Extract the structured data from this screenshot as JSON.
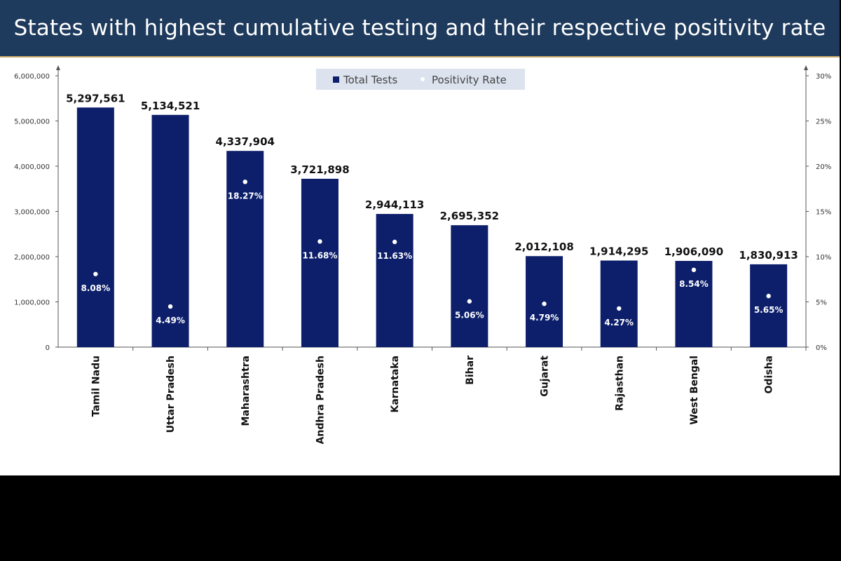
{
  "title": "States with highest cumulative testing and their respective positivity rate",
  "colors": {
    "header_bg": "#1e3a5c",
    "bar": "#0d1f6b",
    "dot": "#ffffff",
    "legend_bg": "#dce3ee"
  },
  "legend": {
    "total_tests": "Total Tests",
    "positivity_rate": "Positivity Rate"
  },
  "chart_data": {
    "type": "bar",
    "title": "States with highest cumulative testing and their respective positivity rate",
    "xlabel": "",
    "ylabel": "",
    "categories": [
      "Tamil Nadu",
      "Uttar Pradesh",
      "Maharashtra",
      "Andhra Pradesh",
      "Karnataka",
      "Bihar",
      "Gujarat",
      "Rajasthan",
      "West Bengal",
      "Odisha"
    ],
    "series": [
      {
        "name": "Total Tests",
        "type": "bar",
        "axis": "left",
        "values": [
          5297561,
          5134521,
          4337904,
          3721898,
          2944113,
          2695352,
          2012108,
          1914295,
          1906090,
          1830913
        ],
        "labels": [
          "5,297,561",
          "5,134,521",
          "4,337,904",
          "3,721,898",
          "2,944,113",
          "2,695,352",
          "2,012,108",
          "1,914,295",
          "1,906,090",
          "1,830,913"
        ]
      },
      {
        "name": "Positivity Rate",
        "type": "scatter",
        "axis": "right",
        "values": [
          8.08,
          4.49,
          18.27,
          11.68,
          11.63,
          5.06,
          4.79,
          4.27,
          8.54,
          5.65
        ],
        "labels": [
          "8.08%",
          "4.49%",
          "18.27%",
          "11.68%",
          "11.63%",
          "5.06%",
          "4.79%",
          "4.27%",
          "8.54%",
          "5.65%"
        ]
      }
    ],
    "y_left": {
      "ylim": [
        0,
        6000000
      ],
      "ticks": [
        0,
        1000000,
        2000000,
        3000000,
        4000000,
        5000000,
        6000000
      ],
      "tick_labels": [
        "0",
        "1,000,000",
        "2,000,000",
        "3,000,000",
        "4,000,000",
        "5,000,000",
        "6,000,000"
      ]
    },
    "y_right": {
      "ylim": [
        0,
        30
      ],
      "ticks": [
        0,
        5,
        10,
        15,
        20,
        25,
        30
      ],
      "tick_labels": [
        "0%",
        "5%",
        "10%",
        "15%",
        "20%",
        "25%",
        "30%"
      ]
    },
    "grid": false,
    "legend_position": "top-center"
  }
}
